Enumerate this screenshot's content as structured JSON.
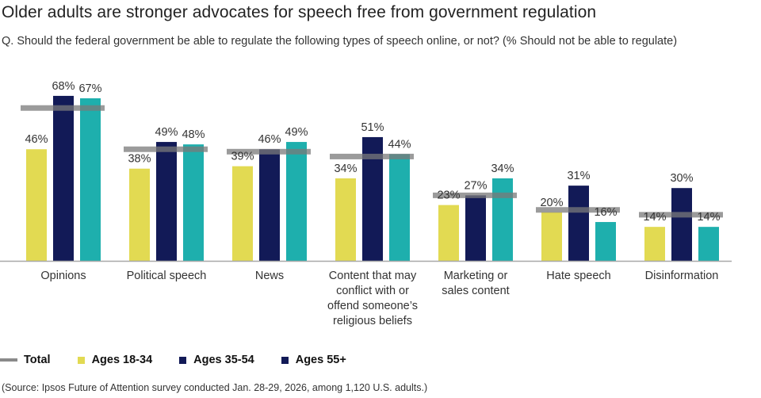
{
  "title": "Older adults are stronger advocates for speech free from government regulation",
  "subtitle": "Q. Should the federal government be able to regulate the following types of speech online, or not? (% Should not be able to regulate)",
  "source": "(Source: Ipsos Future of Attention survey conducted Jan. 28-29, 2026, among 1,120 U.S. adults.)",
  "legend": {
    "total": "Total",
    "s1": "Ages 18-34",
    "s2": "Ages 35-54",
    "s3": "Ages 55+"
  },
  "colors": {
    "ages_18_34": "#e2da52",
    "ages_35_54": "#121a57",
    "ages_55_plus": "#1eafad",
    "total": "#8a8a8a",
    "legend_55_marker": "#121a57"
  },
  "chart_data": {
    "type": "bar",
    "title": "Older adults are stronger advocates for speech free from government regulation",
    "xlabel": "",
    "ylabel": "% Should not be able to regulate",
    "ylim": [
      0,
      70
    ],
    "grid": false,
    "legend_position": "bottom-left",
    "categories": [
      [
        "Opinions"
      ],
      [
        "Political speech"
      ],
      [
        "News"
      ],
      [
        "Content that may",
        "conflict with or",
        "offend someone’s",
        "religious beliefs"
      ],
      [
        "Marketing or",
        "sales content"
      ],
      [
        "Hate speech"
      ],
      [
        "Disinformation"
      ]
    ],
    "series": [
      {
        "name": "Ages 18-34",
        "values": [
          46,
          38,
          39,
          34,
          23,
          20,
          14
        ]
      },
      {
        "name": "Ages 35-54",
        "values": [
          68,
          49,
          46,
          51,
          27,
          31,
          30
        ]
      },
      {
        "name": "Ages 55+",
        "values": [
          67,
          48,
          49,
          44,
          34,
          16,
          14
        ]
      }
    ],
    "total": {
      "name": "Total",
      "values": [
        63,
        46,
        45,
        43,
        27,
        21,
        19
      ],
      "style": "horizontal marker line (estimated, unlabeled)"
    },
    "data_labels": [
      [
        "46%",
        "38%",
        "39%",
        "34%",
        "23%",
        "20%",
        "14%"
      ],
      [
        "68%",
        "49%",
        "46%",
        "51%",
        "27%",
        "31%",
        "30%"
      ],
      [
        "67%",
        "48%",
        "49%",
        "44%",
        "34%",
        "16%",
        "14%"
      ]
    ]
  }
}
